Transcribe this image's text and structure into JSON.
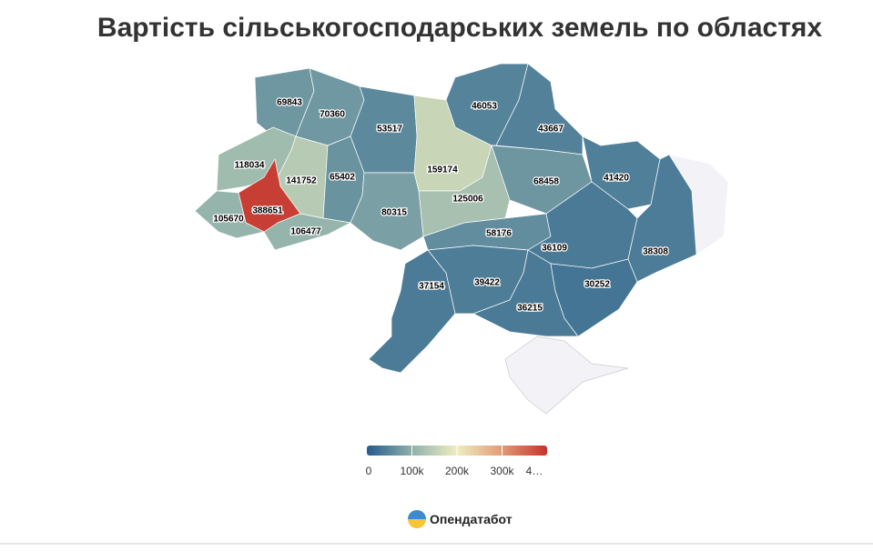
{
  "chart_data": {
    "type": "choropleth",
    "title": "Вартість сільськогосподарських земель по областях",
    "values": [
      69843,
      70360,
      53517,
      46053,
      43667,
      118034,
      141752,
      65402,
      159174,
      125006,
      68458,
      41420,
      388651,
      105670,
      106477,
      80315,
      58176,
      36109,
      38308,
      37154,
      39422,
      36215,
      30252
    ],
    "colorscale": [
      "#245b8c",
      "#8fb1ab",
      "#efeec0",
      "#e29a76",
      "#c4332c"
    ],
    "no_data_color": "#f3f3f7",
    "legend_lim": [
      0,
      400000
    ],
    "legend_ticks": [
      0,
      {
        "value": 100000,
        "label": "100k"
      },
      {
        "value": 200000,
        "label": "200k"
      },
      {
        "value": 300000,
        "label": "300k"
      },
      {
        "value": 400000,
        "label": "4…"
      }
    ],
    "source": "Опендатабот"
  }
}
